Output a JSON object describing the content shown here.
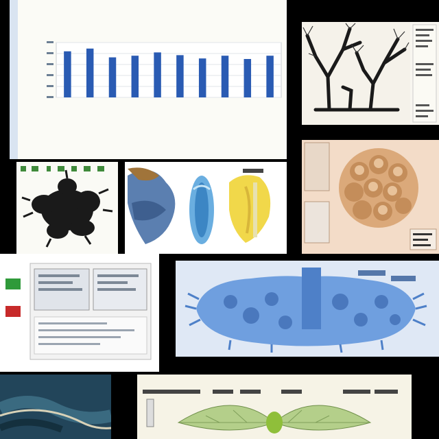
{
  "collage": {
    "description_note": "",
    "chart": {
      "title": "",
      "xlabel": ""
    }
  },
  "chart_data": {
    "type": "bar",
    "categories": [
      "",
      "",
      "",
      "",
      "",
      "",
      "",
      "",
      "",
      ""
    ],
    "values": [
      8.4,
      8.9,
      7.3,
      7.6,
      8.2,
      7.7,
      7.1,
      7.6,
      7.0,
      7.6
    ],
    "title": "",
    "xlabel": "",
    "ylabel": "",
    "ylim": [
      0,
      10
    ],
    "grid": true,
    "bar_color": "#2a5bb3"
  },
  "colors": {
    "background": "#000000",
    "chart_bar": "#2a5bb3",
    "tree_ink": "#1a1a1a",
    "coral_blue": "#6f9fdf",
    "leaf_green": "#9bbf6a"
  }
}
